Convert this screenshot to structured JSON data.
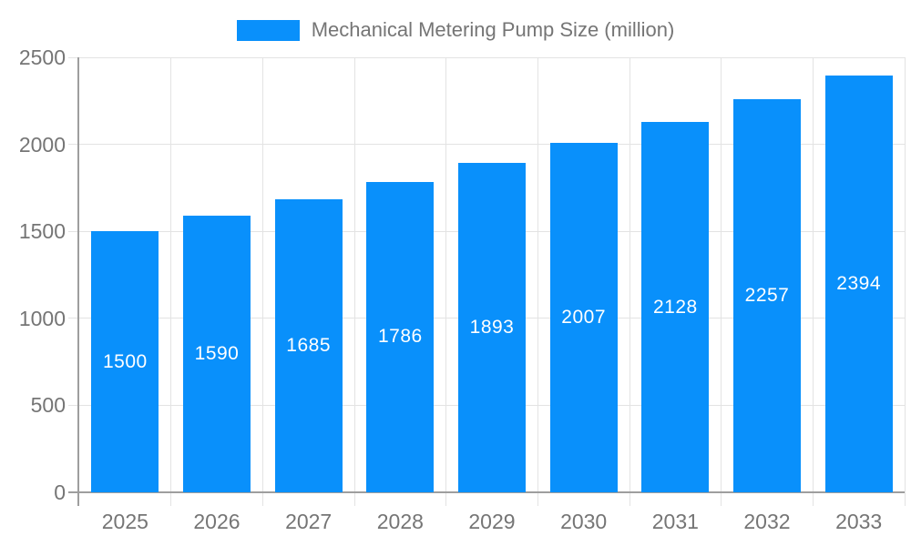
{
  "chart_data": {
    "type": "bar",
    "title": "Mechanical Metering Pump Size (million)",
    "categories": [
      "2025",
      "2026",
      "2027",
      "2028",
      "2029",
      "2030",
      "2031",
      "2032",
      "2033"
    ],
    "values": [
      1500,
      1590,
      1685,
      1786,
      1893,
      2007,
      2128,
      2257,
      2394
    ],
    "xlabel": "",
    "ylabel": "",
    "ylim": [
      0,
      2500
    ],
    "yticks": [
      0,
      500,
      1000,
      1500,
      2000,
      2500
    ],
    "grid": true,
    "legend_position": "top-center",
    "colors": {
      "bar": "#0990fb",
      "bar_label": "#ffffff",
      "axis_text": "#757575",
      "grid_line": "#e3e3e3",
      "axis_line": "#9e9e9e",
      "background": "#ffffff"
    }
  }
}
